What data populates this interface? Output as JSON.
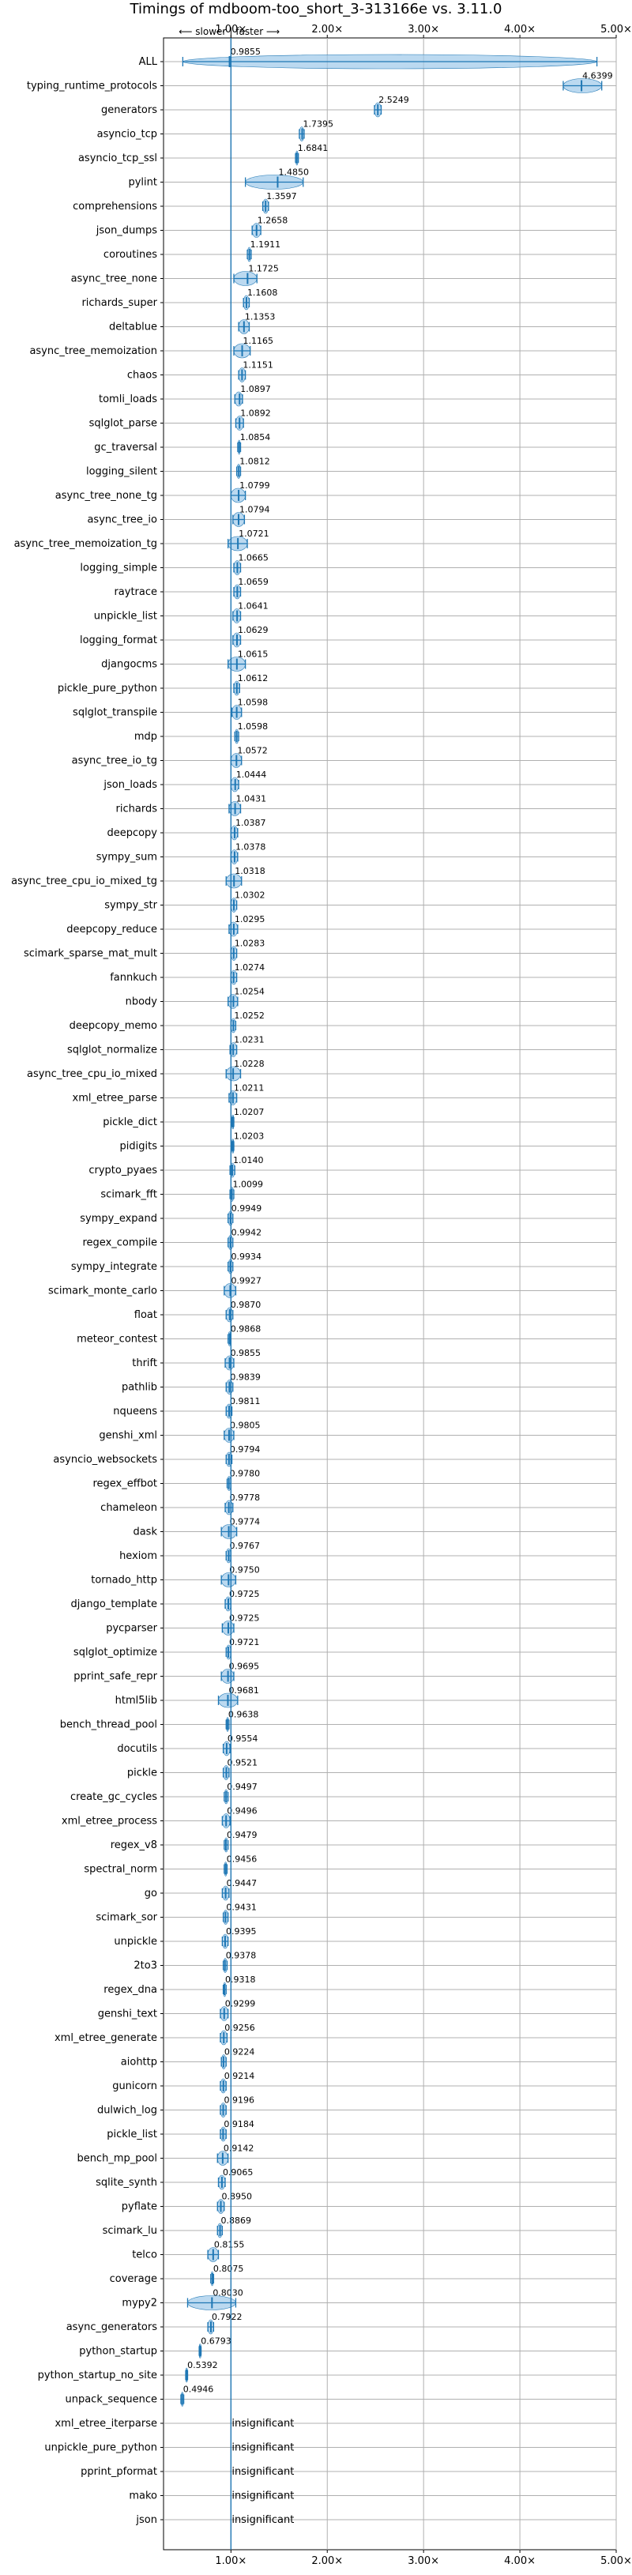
{
  "chart_data": {
    "type": "scatter",
    "title": "Timings of mdboom-too_short_3-313166e vs. 3.11.0",
    "direction_annotation": {
      "slower": "⟵ slower",
      "separator": "|",
      "faster": "faster ⟶"
    },
    "xlim": [
      0.3,
      5.0
    ],
    "x_ticks": [
      1,
      2,
      3,
      4,
      5
    ],
    "x_tick_labels": [
      "1.00×",
      "2.00×",
      "3.00×",
      "4.00×",
      "5.00×"
    ],
    "reference_line_x": 1.0,
    "grid": true,
    "insignificant_text": "insignificant",
    "rows": [
      {
        "name": "ALL",
        "value": 0.9855,
        "label": "0.9855",
        "lo": 0.5,
        "hi": 4.8
      },
      {
        "name": "typing_runtime_protocols",
        "value": 4.6399,
        "label": "4.6399",
        "lo": 4.45,
        "hi": 4.85
      },
      {
        "name": "generators",
        "value": 2.5249,
        "label": "2.5249",
        "lo": 2.49,
        "hi": 2.56
      },
      {
        "name": "asyncio_tcp",
        "value": 1.7395,
        "label": "1.7395",
        "lo": 1.71,
        "hi": 1.76
      },
      {
        "name": "asyncio_tcp_ssl",
        "value": 1.6841,
        "label": "1.6841",
        "lo": 1.67,
        "hi": 1.7
      },
      {
        "name": "pylint",
        "value": 1.485,
        "label": "1.4850",
        "lo": 1.15,
        "hi": 1.75
      },
      {
        "name": "comprehensions",
        "value": 1.3597,
        "label": "1.3597",
        "lo": 1.33,
        "hi": 1.39
      },
      {
        "name": "json_dumps",
        "value": 1.2658,
        "label": "1.2658",
        "lo": 1.22,
        "hi": 1.31
      },
      {
        "name": "coroutines",
        "value": 1.1911,
        "label": "1.1911",
        "lo": 1.17,
        "hi": 1.21
      },
      {
        "name": "async_tree_none",
        "value": 1.1725,
        "label": "1.1725",
        "lo": 1.03,
        "hi": 1.27
      },
      {
        "name": "richards_super",
        "value": 1.1608,
        "label": "1.1608",
        "lo": 1.13,
        "hi": 1.19
      },
      {
        "name": "deltablue",
        "value": 1.1353,
        "label": "1.1353",
        "lo": 1.08,
        "hi": 1.19
      },
      {
        "name": "async_tree_memoization",
        "value": 1.1165,
        "label": "1.1165",
        "lo": 1.03,
        "hi": 1.2
      },
      {
        "name": "chaos",
        "value": 1.1151,
        "label": "1.1151",
        "lo": 1.08,
        "hi": 1.15
      },
      {
        "name": "tomli_loads",
        "value": 1.0897,
        "label": "1.0897",
        "lo": 1.04,
        "hi": 1.12
      },
      {
        "name": "sqlglot_parse",
        "value": 1.0892,
        "label": "1.0892",
        "lo": 1.05,
        "hi": 1.13
      },
      {
        "name": "gc_traversal",
        "value": 1.0854,
        "label": "1.0854",
        "lo": 1.07,
        "hi": 1.1
      },
      {
        "name": "logging_silent",
        "value": 1.0812,
        "label": "1.0812",
        "lo": 1.06,
        "hi": 1.1
      },
      {
        "name": "async_tree_none_tg",
        "value": 1.0799,
        "label": "1.0799",
        "lo": 1.0,
        "hi": 1.15
      },
      {
        "name": "async_tree_io",
        "value": 1.0794,
        "label": "1.0794",
        "lo": 1.02,
        "hi": 1.14
      },
      {
        "name": "async_tree_memoization_tg",
        "value": 1.0721,
        "label": "1.0721",
        "lo": 0.97,
        "hi": 1.17
      },
      {
        "name": "logging_simple",
        "value": 1.0665,
        "label": "1.0665",
        "lo": 1.03,
        "hi": 1.1
      },
      {
        "name": "raytrace",
        "value": 1.0659,
        "label": "1.0659",
        "lo": 1.03,
        "hi": 1.1
      },
      {
        "name": "unpickle_list",
        "value": 1.0641,
        "label": "1.0641",
        "lo": 1.02,
        "hi": 1.1
      },
      {
        "name": "logging_format",
        "value": 1.0629,
        "label": "1.0629",
        "lo": 1.02,
        "hi": 1.1
      },
      {
        "name": "djangocms",
        "value": 1.0615,
        "label": "1.0615",
        "lo": 0.97,
        "hi": 1.15
      },
      {
        "name": "pickle_pure_python",
        "value": 1.0612,
        "label": "1.0612",
        "lo": 1.03,
        "hi": 1.09
      },
      {
        "name": "sqlglot_transpile",
        "value": 1.0598,
        "label": "1.0598",
        "lo": 1.01,
        "hi": 1.11
      },
      {
        "name": "mdp",
        "value": 1.0598,
        "label": "1.0598",
        "lo": 1.04,
        "hi": 1.08
      },
      {
        "name": "async_tree_io_tg",
        "value": 1.0572,
        "label": "1.0572",
        "lo": 1.0,
        "hi": 1.11
      },
      {
        "name": "json_loads",
        "value": 1.0444,
        "label": "1.0444",
        "lo": 1.0,
        "hi": 1.08
      },
      {
        "name": "richards",
        "value": 1.0431,
        "label": "1.0431",
        "lo": 0.98,
        "hi": 1.1
      },
      {
        "name": "deepcopy",
        "value": 1.0387,
        "label": "1.0387",
        "lo": 1.0,
        "hi": 1.07
      },
      {
        "name": "sympy_sum",
        "value": 1.0378,
        "label": "1.0378",
        "lo": 1.0,
        "hi": 1.07
      },
      {
        "name": "async_tree_cpu_io_mixed_tg",
        "value": 1.0318,
        "label": "1.0318",
        "lo": 0.95,
        "hi": 1.11
      },
      {
        "name": "sympy_str",
        "value": 1.0302,
        "label": "1.0302",
        "lo": 1.0,
        "hi": 1.06
      },
      {
        "name": "deepcopy_reduce",
        "value": 1.0295,
        "label": "1.0295",
        "lo": 0.98,
        "hi": 1.07
      },
      {
        "name": "scimark_sparse_mat_mult",
        "value": 1.0283,
        "label": "1.0283",
        "lo": 1.0,
        "hi": 1.06
      },
      {
        "name": "fannkuch",
        "value": 1.0274,
        "label": "1.0274",
        "lo": 1.0,
        "hi": 1.06
      },
      {
        "name": "nbody",
        "value": 1.0254,
        "label": "1.0254",
        "lo": 0.97,
        "hi": 1.07
      },
      {
        "name": "deepcopy_memo",
        "value": 1.0252,
        "label": "1.0252",
        "lo": 1.0,
        "hi": 1.05
      },
      {
        "name": "sqlglot_normalize",
        "value": 1.0231,
        "label": "1.0231",
        "lo": 0.99,
        "hi": 1.06
      },
      {
        "name": "async_tree_cpu_io_mixed",
        "value": 1.0228,
        "label": "1.0228",
        "lo": 0.95,
        "hi": 1.1
      },
      {
        "name": "xml_etree_parse",
        "value": 1.0211,
        "label": "1.0211",
        "lo": 0.98,
        "hi": 1.06
      },
      {
        "name": "pickle_dict",
        "value": 1.0207,
        "label": "1.0207",
        "lo": 1.01,
        "hi": 1.03
      },
      {
        "name": "pidigits",
        "value": 1.0203,
        "label": "1.0203",
        "lo": 1.01,
        "hi": 1.03
      },
      {
        "name": "crypto_pyaes",
        "value": 1.014,
        "label": "1.0140",
        "lo": 0.99,
        "hi": 1.04
      },
      {
        "name": "scimark_fft",
        "value": 1.0099,
        "label": "1.0099",
        "lo": 0.99,
        "hi": 1.03
      },
      {
        "name": "sympy_expand",
        "value": 0.9949,
        "label": "0.9949",
        "lo": 0.97,
        "hi": 1.02
      },
      {
        "name": "regex_compile",
        "value": 0.9942,
        "label": "0.9942",
        "lo": 0.97,
        "hi": 1.02
      },
      {
        "name": "sympy_integrate",
        "value": 0.9934,
        "label": "0.9934",
        "lo": 0.97,
        "hi": 1.02
      },
      {
        "name": "scimark_monte_carlo",
        "value": 0.9927,
        "label": "0.9927",
        "lo": 0.93,
        "hi": 1.05
      },
      {
        "name": "float",
        "value": 0.987,
        "label": "0.9870",
        "lo": 0.95,
        "hi": 1.02
      },
      {
        "name": "meteor_contest",
        "value": 0.9868,
        "label": "0.9868",
        "lo": 0.97,
        "hi": 1.0
      },
      {
        "name": "thrift",
        "value": 0.9855,
        "label": "0.9855",
        "lo": 0.94,
        "hi": 1.03
      },
      {
        "name": "pathlib",
        "value": 0.9839,
        "label": "0.9839",
        "lo": 0.95,
        "hi": 1.02
      },
      {
        "name": "nqueens",
        "value": 0.9811,
        "label": "0.9811",
        "lo": 0.95,
        "hi": 1.01
      },
      {
        "name": "genshi_xml",
        "value": 0.9805,
        "label": "0.9805",
        "lo": 0.93,
        "hi": 1.03
      },
      {
        "name": "asyncio_websockets",
        "value": 0.9794,
        "label": "0.9794",
        "lo": 0.95,
        "hi": 1.01
      },
      {
        "name": "regex_effbot",
        "value": 0.978,
        "label": "0.9780",
        "lo": 0.96,
        "hi": 1.0
      },
      {
        "name": "chameleon",
        "value": 0.9778,
        "label": "0.9778",
        "lo": 0.94,
        "hi": 1.02
      },
      {
        "name": "dask",
        "value": 0.9774,
        "label": "0.9774",
        "lo": 0.9,
        "hi": 1.06
      },
      {
        "name": "hexiom",
        "value": 0.9767,
        "label": "0.9767",
        "lo": 0.95,
        "hi": 1.0
      },
      {
        "name": "tornado_http",
        "value": 0.975,
        "label": "0.9750",
        "lo": 0.9,
        "hi": 1.05
      },
      {
        "name": "django_template",
        "value": 0.9725,
        "label": "0.9725",
        "lo": 0.94,
        "hi": 1.0
      },
      {
        "name": "pycparser",
        "value": 0.9725,
        "label": "0.9725",
        "lo": 0.91,
        "hi": 1.03
      },
      {
        "name": "sqlglot_optimize",
        "value": 0.9721,
        "label": "0.9721",
        "lo": 0.95,
        "hi": 1.0
      },
      {
        "name": "pprint_safe_repr",
        "value": 0.9695,
        "label": "0.9695",
        "lo": 0.9,
        "hi": 1.03
      },
      {
        "name": "html5lib",
        "value": 0.9681,
        "label": "0.9681",
        "lo": 0.87,
        "hi": 1.07
      },
      {
        "name": "bench_thread_pool",
        "value": 0.9638,
        "label": "0.9638",
        "lo": 0.95,
        "hi": 0.98
      },
      {
        "name": "docutils",
        "value": 0.9554,
        "label": "0.9554",
        "lo": 0.92,
        "hi": 0.99
      },
      {
        "name": "pickle",
        "value": 0.9521,
        "label": "0.9521",
        "lo": 0.92,
        "hi": 0.98
      },
      {
        "name": "create_gc_cycles",
        "value": 0.9497,
        "label": "0.9497",
        "lo": 0.93,
        "hi": 0.97
      },
      {
        "name": "xml_etree_process",
        "value": 0.9496,
        "label": "0.9496",
        "lo": 0.91,
        "hi": 0.99
      },
      {
        "name": "regex_v8",
        "value": 0.9479,
        "label": "0.9479",
        "lo": 0.93,
        "hi": 0.97
      },
      {
        "name": "spectral_norm",
        "value": 0.9456,
        "label": "0.9456",
        "lo": 0.93,
        "hi": 0.96
      },
      {
        "name": "go",
        "value": 0.9447,
        "label": "0.9447",
        "lo": 0.91,
        "hi": 0.98
      },
      {
        "name": "scimark_sor",
        "value": 0.9431,
        "label": "0.9431",
        "lo": 0.92,
        "hi": 0.97
      },
      {
        "name": "unpickle",
        "value": 0.9395,
        "label": "0.9395",
        "lo": 0.91,
        "hi": 0.97
      },
      {
        "name": "2to3",
        "value": 0.9378,
        "label": "0.9378",
        "lo": 0.92,
        "hi": 0.96
      },
      {
        "name": "regex_dna",
        "value": 0.9318,
        "label": "0.9318",
        "lo": 0.92,
        "hi": 0.95
      },
      {
        "name": "genshi_text",
        "value": 0.9299,
        "label": "0.9299",
        "lo": 0.89,
        "hi": 0.97
      },
      {
        "name": "xml_etree_generate",
        "value": 0.9256,
        "label": "0.9256",
        "lo": 0.89,
        "hi": 0.96
      },
      {
        "name": "aiohttp",
        "value": 0.9224,
        "label": "0.9224",
        "lo": 0.9,
        "hi": 0.95
      },
      {
        "name": "gunicorn",
        "value": 0.9214,
        "label": "0.9214",
        "lo": 0.89,
        "hi": 0.95
      },
      {
        "name": "dulwich_log",
        "value": 0.9196,
        "label": "0.9196",
        "lo": 0.89,
        "hi": 0.95
      },
      {
        "name": "pickle_list",
        "value": 0.9184,
        "label": "0.9184",
        "lo": 0.89,
        "hi": 0.95
      },
      {
        "name": "bench_mp_pool",
        "value": 0.9142,
        "label": "0.9142",
        "lo": 0.86,
        "hi": 0.97
      },
      {
        "name": "sqlite_synth",
        "value": 0.9065,
        "label": "0.9065",
        "lo": 0.87,
        "hi": 0.94
      },
      {
        "name": "pyflate",
        "value": 0.895,
        "label": "0.8950",
        "lo": 0.86,
        "hi": 0.93
      },
      {
        "name": "scimark_lu",
        "value": 0.8869,
        "label": "0.8869",
        "lo": 0.86,
        "hi": 0.91
      },
      {
        "name": "telco",
        "value": 0.8155,
        "label": "0.8155",
        "lo": 0.76,
        "hi": 0.87
      },
      {
        "name": "coverage",
        "value": 0.8075,
        "label": "0.8075",
        "lo": 0.79,
        "hi": 0.82
      },
      {
        "name": "mypy2",
        "value": 0.803,
        "label": "0.8030",
        "lo": 0.55,
        "hi": 1.05
      },
      {
        "name": "async_generators",
        "value": 0.7922,
        "label": "0.7922",
        "lo": 0.76,
        "hi": 0.82
      },
      {
        "name": "python_startup",
        "value": 0.6793,
        "label": "0.6793",
        "lo": 0.67,
        "hi": 0.69
      },
      {
        "name": "python_startup_no_site",
        "value": 0.5392,
        "label": "0.5392",
        "lo": 0.53,
        "hi": 0.55
      },
      {
        "name": "unpack_sequence",
        "value": 0.4946,
        "label": "0.4946",
        "lo": 0.48,
        "hi": 0.51
      },
      {
        "name": "xml_etree_iterparse",
        "value": null,
        "label": "insignificant"
      },
      {
        "name": "unpickle_pure_python",
        "value": null,
        "label": "insignificant"
      },
      {
        "name": "pprint_pformat",
        "value": null,
        "label": "insignificant"
      },
      {
        "name": "mako",
        "value": null,
        "label": "insignificant"
      },
      {
        "name": "json",
        "value": null,
        "label": "insignificant"
      }
    ]
  },
  "colors": {
    "accent": "#1f77b4",
    "violin": "#9ec9ea",
    "grid": "#b0b0b0",
    "reference": "#1f77b4",
    "outlier": "#d62728"
  }
}
